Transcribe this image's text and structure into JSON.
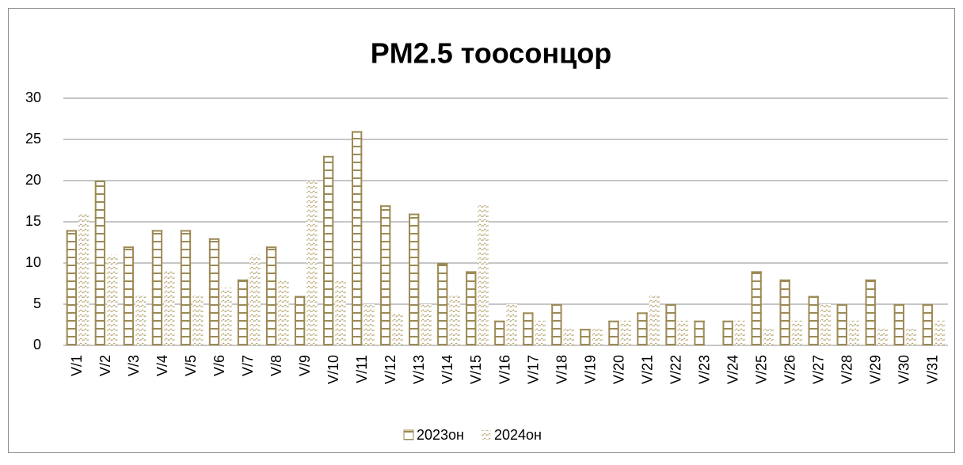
{
  "chart_data": {
    "type": "bar",
    "title": "PM2.5 тоосонцор",
    "categories": [
      "V/1",
      "V/2",
      "V/3",
      "V/4",
      "V/5",
      "V/6",
      "V/7",
      "V/8",
      "V/9",
      "V/10",
      "V/11",
      "V/12",
      "V/13",
      "V/14",
      "V/15",
      "V/16",
      "V/17",
      "V/18",
      "V/19",
      "V/20",
      "V/21",
      "V/22",
      "V/23",
      "V/24",
      "V/25",
      "V/26",
      "V/27",
      "V/28",
      "V/29",
      "V/30",
      "V/31"
    ],
    "series": [
      {
        "name": "2023он",
        "color": "#9c8a55",
        "values": [
          14,
          20,
          12,
          14,
          14,
          13,
          8,
          12,
          6,
          23,
          26,
          17,
          16,
          10,
          9,
          3,
          4,
          5,
          2,
          3,
          4,
          5,
          3,
          3,
          9,
          8,
          6,
          5,
          8,
          5,
          5
        ]
      },
      {
        "name": "2024он",
        "color": "#b5a470",
        "values": [
          16,
          11,
          6,
          9,
          6,
          7,
          11,
          8,
          20,
          8,
          5,
          4,
          5,
          6,
          17,
          5,
          3,
          2,
          2,
          3,
          6,
          3,
          0,
          3,
          2,
          3,
          5,
          3,
          2,
          2,
          3
        ]
      }
    ],
    "ylim": [
      0,
      30
    ],
    "yticks": [
      0,
      5,
      10,
      15,
      20,
      25,
      30
    ],
    "grid": true,
    "legend": "bottom"
  }
}
